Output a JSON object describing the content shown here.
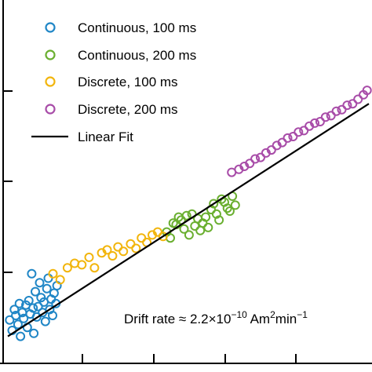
{
  "chart_data": {
    "type": "scatter",
    "title": "",
    "xlabel": "",
    "ylabel": "",
    "xlim": [
      0,
      100
    ],
    "ylim": [
      0,
      100
    ],
    "grid": false,
    "legend_position": "top-left",
    "legend": {
      "fit_label": "Linear Fit",
      "fit_color": "#000000"
    },
    "annotation": {
      "prefix": "Drift rate ≈ 2.2×10",
      "exp1": "−10",
      "mid1": " Am",
      "exp2": "2",
      "mid2": "min",
      "exp3": "−1"
    },
    "fit": {
      "x": [
        0,
        100
      ],
      "y": [
        3,
        81
      ]
    },
    "series": [
      {
        "name": "Continuous, 100 ms",
        "color": "#1f86c6",
        "points": [
          [
            0.5,
            8.5
          ],
          [
            1.2,
            5
          ],
          [
            1.8,
            12
          ],
          [
            2.2,
            10
          ],
          [
            2.8,
            7
          ],
          [
            3.2,
            14
          ],
          [
            3.5,
            3
          ],
          [
            4,
            11
          ],
          [
            4.4,
            9
          ],
          [
            5,
            13.5
          ],
          [
            5.4,
            6
          ],
          [
            5.8,
            15
          ],
          [
            6.2,
            10.5
          ],
          [
            6.6,
            24
          ],
          [
            7,
            12.5
          ],
          [
            7.2,
            4
          ],
          [
            7.6,
            18
          ],
          [
            8,
            9.5
          ],
          [
            8.4,
            13
          ],
          [
            8.8,
            21
          ],
          [
            9.2,
            16
          ],
          [
            9.6,
            11
          ],
          [
            10,
            14.5
          ],
          [
            10.4,
            8
          ],
          [
            10.8,
            19
          ],
          [
            11.2,
            22.5
          ],
          [
            11.6,
            12
          ],
          [
            12,
            15.5
          ],
          [
            12.4,
            10
          ],
          [
            12.8,
            17.5
          ],
          [
            13.3,
            14
          ],
          [
            13.6,
            20
          ]
        ]
      },
      {
        "name": "Continuous, 200 ms",
        "color": "#6aaf30",
        "points": [
          [
            44,
            38
          ],
          [
            45,
            36
          ],
          [
            45.8,
            41
          ],
          [
            46.6,
            40.5
          ],
          [
            47.3,
            43
          ],
          [
            48,
            42
          ],
          [
            48.8,
            39
          ],
          [
            49.5,
            43.5
          ],
          [
            50.2,
            37
          ],
          [
            51,
            44
          ],
          [
            51.8,
            40
          ],
          [
            52.6,
            42.5
          ],
          [
            53.3,
            38.5
          ],
          [
            54,
            41
          ],
          [
            54.8,
            43
          ],
          [
            55.5,
            39.5
          ],
          [
            56.3,
            45.5
          ],
          [
            57,
            47.5
          ],
          [
            57.8,
            44
          ],
          [
            58.5,
            42
          ],
          [
            59.2,
            49
          ],
          [
            60,
            48
          ],
          [
            60.8,
            46
          ],
          [
            61.5,
            45
          ],
          [
            62.2,
            50
          ],
          [
            63,
            47
          ]
        ]
      },
      {
        "name": "Discrete, 100 ms",
        "color": "#f2b50c",
        "points": [
          [
            12.5,
            24
          ],
          [
            14.5,
            22
          ],
          [
            16.5,
            26
          ],
          [
            18.5,
            27.5
          ],
          [
            20.5,
            27
          ],
          [
            22.5,
            29.5
          ],
          [
            24,
            26
          ],
          [
            26,
            31
          ],
          [
            27.5,
            32
          ],
          [
            29,
            30
          ],
          [
            30.5,
            33
          ],
          [
            32,
            31.5
          ],
          [
            34,
            34
          ],
          [
            35.5,
            32.5
          ],
          [
            37,
            36
          ],
          [
            38.5,
            34.5
          ],
          [
            40,
            37
          ],
          [
            41.5,
            38
          ],
          [
            43,
            36.5
          ]
        ]
      },
      {
        "name": "Discrete, 200 ms",
        "color": "#a84ca8",
        "points": [
          [
            62,
            58
          ],
          [
            64,
            59
          ],
          [
            65.5,
            60
          ],
          [
            67,
            61
          ],
          [
            68.5,
            62.5
          ],
          [
            70,
            63
          ],
          [
            71.5,
            64.5
          ],
          [
            73,
            65.5
          ],
          [
            74.5,
            67
          ],
          [
            76,
            68
          ],
          [
            77.5,
            69.5
          ],
          [
            79,
            70
          ],
          [
            80.5,
            71.5
          ],
          [
            82,
            72
          ],
          [
            83.5,
            73.5
          ],
          [
            85,
            74.5
          ],
          [
            86.5,
            75
          ],
          [
            88,
            76.5
          ],
          [
            89.5,
            77
          ],
          [
            91,
            78.5
          ],
          [
            92.5,
            79
          ],
          [
            94,
            80.5
          ],
          [
            95.5,
            81
          ],
          [
            97,
            82.5
          ],
          [
            98.5,
            84
          ],
          [
            99.5,
            85.5
          ]
        ]
      }
    ]
  }
}
